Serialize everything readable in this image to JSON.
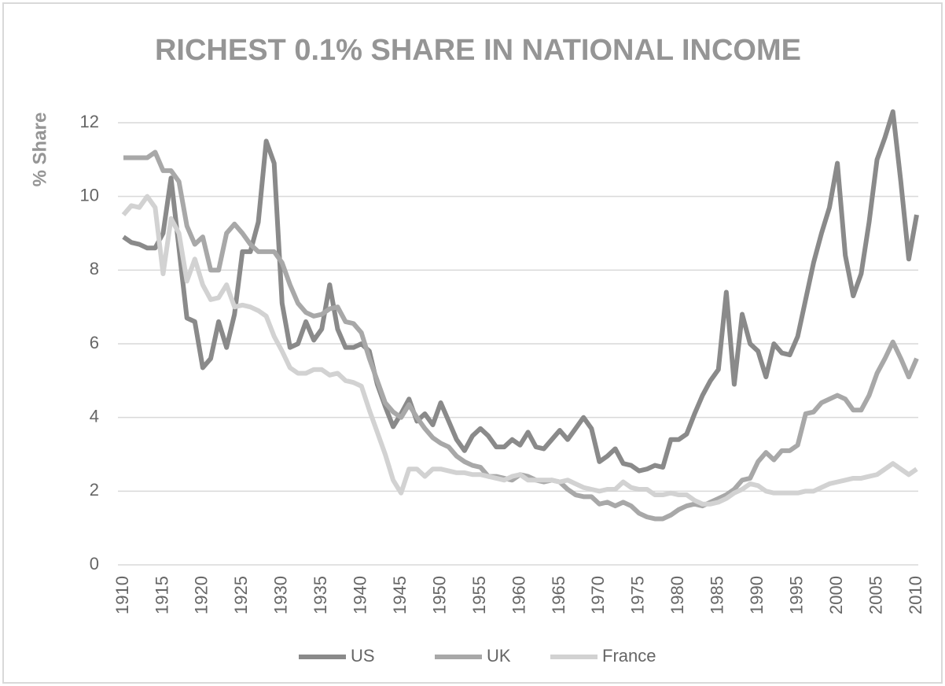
{
  "chart_data": {
    "type": "line",
    "title": "RICHEST 0.1% SHARE IN NATIONAL INCOME",
    "ylabel": "% Share",
    "x": [
      1910,
      1911,
      1912,
      1913,
      1914,
      1915,
      1916,
      1917,
      1918,
      1919,
      1920,
      1921,
      1922,
      1923,
      1924,
      1925,
      1926,
      1927,
      1928,
      1929,
      1930,
      1931,
      1932,
      1933,
      1934,
      1935,
      1936,
      1937,
      1938,
      1939,
      1940,
      1941,
      1942,
      1943,
      1944,
      1945,
      1946,
      1947,
      1948,
      1949,
      1950,
      1951,
      1952,
      1953,
      1954,
      1955,
      1956,
      1957,
      1958,
      1959,
      1960,
      1961,
      1962,
      1963,
      1964,
      1965,
      1966,
      1967,
      1968,
      1969,
      1970,
      1971,
      1972,
      1973,
      1974,
      1975,
      1976,
      1977,
      1978,
      1979,
      1980,
      1981,
      1982,
      1983,
      1984,
      1985,
      1986,
      1987,
      1988,
      1989,
      1990,
      1991,
      1992,
      1993,
      1994,
      1995,
      1996,
      1997,
      1998,
      1999,
      2000,
      2001,
      2002,
      2003,
      2004,
      2005,
      2006,
      2007,
      2008,
      2009,
      2010
    ],
    "series": [
      {
        "name": "US",
        "color": "#8a8a8a",
        "values": [
          8.9,
          8.75,
          8.7,
          8.6,
          8.6,
          9.0,
          10.5,
          8.6,
          6.7,
          6.6,
          5.35,
          5.6,
          6.6,
          5.9,
          6.8,
          8.5,
          8.5,
          9.3,
          11.5,
          10.9,
          7.1,
          5.9,
          6.0,
          6.6,
          6.1,
          6.4,
          7.6,
          6.4,
          5.9,
          5.9,
          6.0,
          5.8,
          4.9,
          4.3,
          3.75,
          4.1,
          4.5,
          3.9,
          4.1,
          3.8,
          4.4,
          3.9,
          3.4,
          3.1,
          3.5,
          3.7,
          3.5,
          3.2,
          3.2,
          3.4,
          3.25,
          3.6,
          3.2,
          3.15,
          3.4,
          3.65,
          3.4,
          3.7,
          4.0,
          3.7,
          2.8,
          2.95,
          3.15,
          2.75,
          2.7,
          2.55,
          2.6,
          2.7,
          2.65,
          3.4,
          3.4,
          3.55,
          4.1,
          4.6,
          5.0,
          5.3,
          7.4,
          4.9,
          6.8,
          6.0,
          5.8,
          5.1,
          6.0,
          5.75,
          5.7,
          6.2,
          7.2,
          8.2,
          9.0,
          9.7,
          10.9,
          8.4,
          7.3,
          7.9,
          9.3,
          11.0,
          11.6,
          12.3,
          10.4,
          8.3,
          9.5
        ]
      },
      {
        "name": "UK",
        "color": "#a8a8a8",
        "values": [
          11.05,
          11.05,
          11.05,
          11.05,
          11.2,
          10.7,
          10.7,
          10.4,
          9.2,
          8.7,
          8.9,
          8.0,
          8.0,
          9.0,
          9.25,
          9.0,
          8.7,
          8.5,
          8.5,
          8.5,
          8.2,
          7.6,
          7.1,
          6.85,
          6.75,
          6.8,
          6.95,
          7.0,
          6.6,
          6.55,
          6.3,
          5.6,
          5.0,
          4.4,
          4.15,
          4.0,
          4.35,
          4.0,
          3.7,
          3.45,
          3.3,
          3.2,
          2.95,
          2.8,
          2.7,
          2.65,
          2.4,
          2.4,
          2.35,
          2.3,
          2.45,
          2.4,
          2.3,
          2.25,
          2.3,
          2.25,
          2.05,
          1.9,
          1.85,
          1.85,
          1.65,
          1.7,
          1.6,
          1.7,
          1.6,
          1.4,
          1.3,
          1.25,
          1.25,
          1.35,
          1.5,
          1.6,
          1.65,
          1.6,
          1.7,
          1.8,
          1.9,
          2.05,
          2.3,
          2.35,
          2.8,
          3.05,
          2.85,
          3.1,
          3.1,
          3.25,
          4.1,
          4.15,
          4.4,
          4.5,
          4.6,
          4.5,
          4.2,
          4.2,
          4.6,
          5.2,
          5.6,
          6.05,
          5.6,
          5.1,
          5.6
        ]
      },
      {
        "name": "France",
        "color": "#d2d2d2",
        "values": [
          9.5,
          9.75,
          9.7,
          10.0,
          9.7,
          7.9,
          9.4,
          9.0,
          7.7,
          8.3,
          7.6,
          7.2,
          7.25,
          7.6,
          7.0,
          7.05,
          7.0,
          6.9,
          6.75,
          6.2,
          5.8,
          5.35,
          5.2,
          5.2,
          5.3,
          5.3,
          5.15,
          5.2,
          5.0,
          4.95,
          4.85,
          4.2,
          3.6,
          3.0,
          2.3,
          1.95,
          2.6,
          2.6,
          2.4,
          2.6,
          2.6,
          2.55,
          2.5,
          2.5,
          2.45,
          2.45,
          2.4,
          2.35,
          2.3,
          2.4,
          2.45,
          2.3,
          2.3,
          2.3,
          2.3,
          2.25,
          2.3,
          2.2,
          2.1,
          2.05,
          2.0,
          2.05,
          2.05,
          2.25,
          2.1,
          2.05,
          2.05,
          1.9,
          1.9,
          1.95,
          1.9,
          1.9,
          1.75,
          1.65,
          1.65,
          1.7,
          1.8,
          1.95,
          2.05,
          2.2,
          2.15,
          2.0,
          1.95,
          1.95,
          1.95,
          1.95,
          2.0,
          2.0,
          2.1,
          2.2,
          2.25,
          2.3,
          2.35,
          2.35,
          2.4,
          2.45,
          2.6,
          2.75,
          2.6,
          2.45,
          2.6
        ]
      }
    ],
    "xlim": [
      1910,
      2010
    ],
    "xticks": [
      1910,
      1915,
      1920,
      1925,
      1930,
      1935,
      1940,
      1945,
      1950,
      1955,
      1960,
      1965,
      1970,
      1975,
      1980,
      1985,
      1990,
      1995,
      2000,
      2005,
      2010
    ],
    "ylim": [
      0,
      12
    ],
    "yticks": [
      0,
      2,
      4,
      6,
      8,
      10,
      12
    ],
    "grid": true,
    "legend": "bottom"
  }
}
